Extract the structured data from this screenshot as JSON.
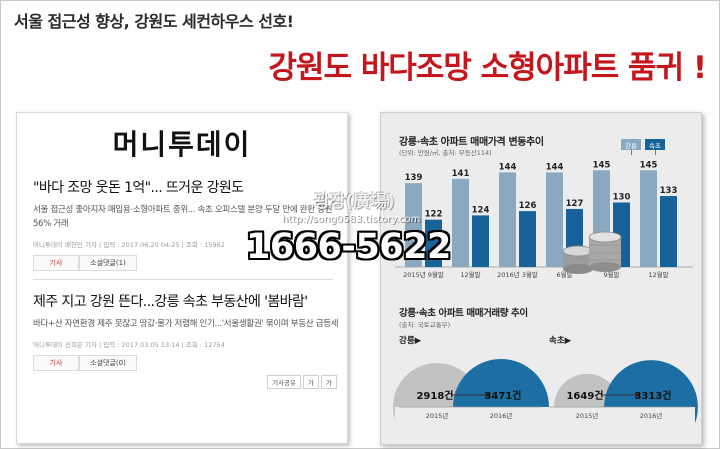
{
  "header": {
    "subtitle": "서울 접근성 향상, 강원도 세컨하우스 선호!",
    "headline": "강원도 바다조망 소형아파트 품귀 !"
  },
  "news": {
    "brand": "머니투데이",
    "articles": [
      {
        "title": "\"바다 조망 웃돈 1억\"... 뜨거운 강원도",
        "summary": "서울 접근성 좋아지자 매입용·소형아파트 중위... 속초 오피스텔 분양 두달 만에 완판 강원 56% 거래",
        "meta": "머니투데이 배현민 기자 | 입력 : 2017.06.20 04:25 | 조회 : 15962",
        "actions": [
          "기사",
          "소셜댓글(1)"
        ]
      },
      {
        "title": "제주 지고 강원 뜬다...강릉 속초 부동산에 '봄바람'",
        "summary": "바다+산 자연환경 제주 못잖고 땅값·물가 저렴해 인기...'서울생활권' 묶이며 부동산 급등세",
        "meta": "머니투데이 신희은 기자 | 입력 : 2017.03.05 13:14 | 조회 : 12754",
        "actions": [
          "기사",
          "소셜댓글(0)"
        ],
        "share": [
          "기사공유",
          "가",
          "가"
        ]
      }
    ]
  },
  "price_chart": {
    "title": "강릉·속초 아파트 매매가격 변동추이",
    "subtitle": "(단위: 만원/㎡, 출처: 부동산114)",
    "chart_data": {
      "type": "bar",
      "categories": [
        "2015년 9월말",
        "12월말",
        "2016년 3월말",
        "6월말",
        "9월말",
        "12월말"
      ],
      "series": [
        {
          "name": "강릉",
          "values": [
            139,
            141,
            144,
            144,
            145,
            145
          ],
          "color": "#8aa8bf"
        },
        {
          "name": "속초",
          "values": [
            122,
            124,
            126,
            127,
            130,
            133
          ],
          "color": "#18629a"
        }
      ]
    }
  },
  "volume_chart": {
    "title": "강릉·속초 아파트 매매거래량 추이",
    "subtitle": "(출처: 국토교통부)",
    "chart_data": {
      "type": "bar",
      "categories": [
        "2015년",
        "2016년"
      ],
      "series": [
        {
          "name": "강릉▶",
          "values": [
            2918,
            3471
          ]
        },
        {
          "name": "속초▶",
          "values": [
            1649,
            3313
          ]
        }
      ],
      "unit": "건"
    }
  },
  "overlay": {
    "phone": "1666-5622",
    "watermark_name": "광장(廣場)",
    "watermark_url": "http://song0583.tistory.com"
  }
}
